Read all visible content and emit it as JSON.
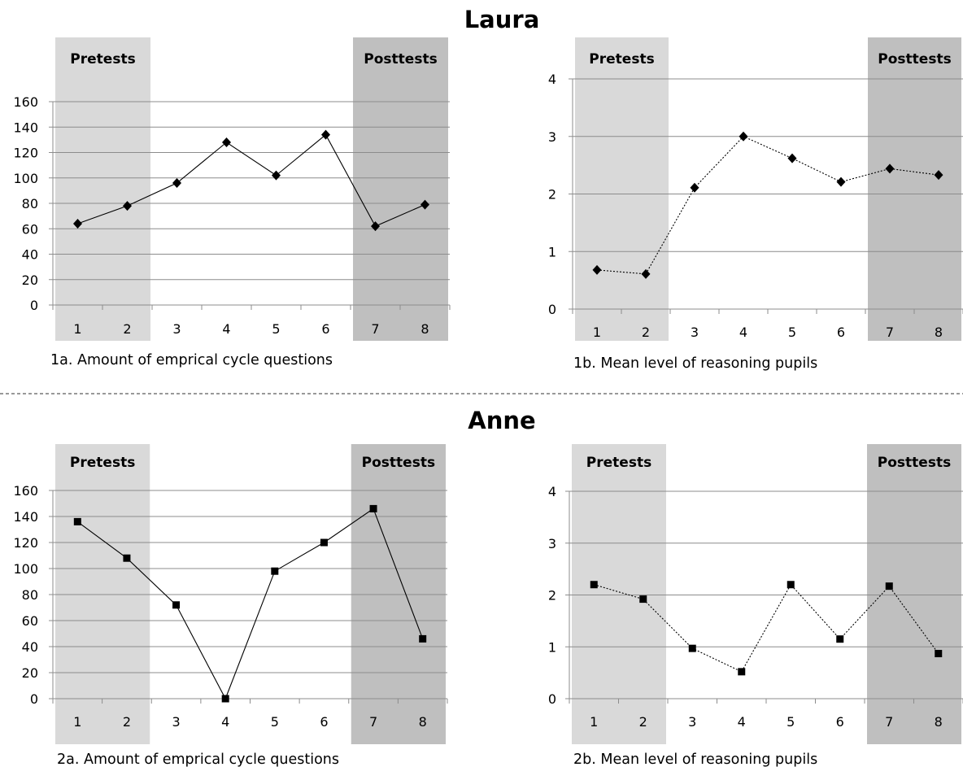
{
  "figure": {
    "sections": [
      {
        "name": "Laura"
      },
      {
        "name": "Anne"
      }
    ]
  },
  "chart_data": [
    {
      "id": "1a",
      "type": "line",
      "caption": "1a. Amount of emprical cycle questions",
      "categories": [
        "1",
        "2",
        "3",
        "4",
        "5",
        "6",
        "7",
        "8"
      ],
      "series": [
        {
          "values": [
            64,
            78,
            96,
            128,
            102,
            134,
            62,
            79
          ]
        }
      ],
      "ylim": [
        0,
        160
      ],
      "yticks": [
        0,
        20,
        40,
        60,
        80,
        100,
        120,
        140,
        160
      ],
      "marker": "diamond",
      "line_style": "solid",
      "bands": [
        {
          "label": "Pretests",
          "categories": [
            "1",
            "2"
          ],
          "color": "#d9d9d9"
        },
        {
          "label": "Posttests",
          "categories": [
            "7",
            "8"
          ],
          "color": "#bfbfbf"
        }
      ],
      "grid": true
    },
    {
      "id": "1b",
      "type": "line",
      "caption": "1b. Mean level of reasoning pupils",
      "categories": [
        "1",
        "2",
        "3",
        "4",
        "5",
        "6",
        "7",
        "8"
      ],
      "series": [
        {
          "values": [
            0.68,
            0.61,
            2.11,
            3.0,
            2.62,
            2.21,
            2.44,
            2.33
          ]
        }
      ],
      "ylim": [
        0,
        4
      ],
      "yticks": [
        0,
        1,
        2,
        3,
        4
      ],
      "marker": "diamond",
      "line_style": "dotted",
      "bands": [
        {
          "label": "Pretests",
          "categories": [
            "1",
            "2"
          ],
          "color": "#d9d9d9"
        },
        {
          "label": "Posttests",
          "categories": [
            "7",
            "8"
          ],
          "color": "#bfbfbf"
        }
      ],
      "grid": true
    },
    {
      "id": "2a",
      "type": "line",
      "caption": "2a. Amount of emprical cycle questions",
      "categories": [
        "1",
        "2",
        "3",
        "4",
        "5",
        "6",
        "7",
        "8"
      ],
      "series": [
        {
          "values": [
            136,
            108,
            72,
            0,
            98,
            120,
            146,
            46
          ]
        }
      ],
      "ylim": [
        0,
        160
      ],
      "yticks": [
        0,
        20,
        40,
        60,
        80,
        100,
        120,
        140,
        160
      ],
      "marker": "square",
      "line_style": "solid",
      "bands": [
        {
          "label": "Pretests",
          "categories": [
            "1",
            "2"
          ],
          "color": "#d9d9d9"
        },
        {
          "label": "Posttests",
          "categories": [
            "7",
            "8"
          ],
          "color": "#bfbfbf"
        }
      ],
      "grid": true
    },
    {
      "id": "2b",
      "type": "line",
      "caption": "2b. Mean level of reasoning pupils",
      "categories": [
        "1",
        "2",
        "3",
        "4",
        "5",
        "6",
        "7",
        "8"
      ],
      "series": [
        {
          "values": [
            2.2,
            1.92,
            0.97,
            0.52,
            2.2,
            1.15,
            2.17,
            0.87
          ]
        }
      ],
      "ylim": [
        0,
        4
      ],
      "yticks": [
        0,
        1,
        2,
        3,
        4
      ],
      "marker": "square",
      "line_style": "dotted",
      "bands": [
        {
          "label": "Pretests",
          "categories": [
            "1",
            "2"
          ],
          "color": "#d9d9d9"
        },
        {
          "label": "Posttests",
          "categories": [
            "7",
            "8"
          ],
          "color": "#bfbfbf"
        }
      ],
      "grid": true
    }
  ]
}
